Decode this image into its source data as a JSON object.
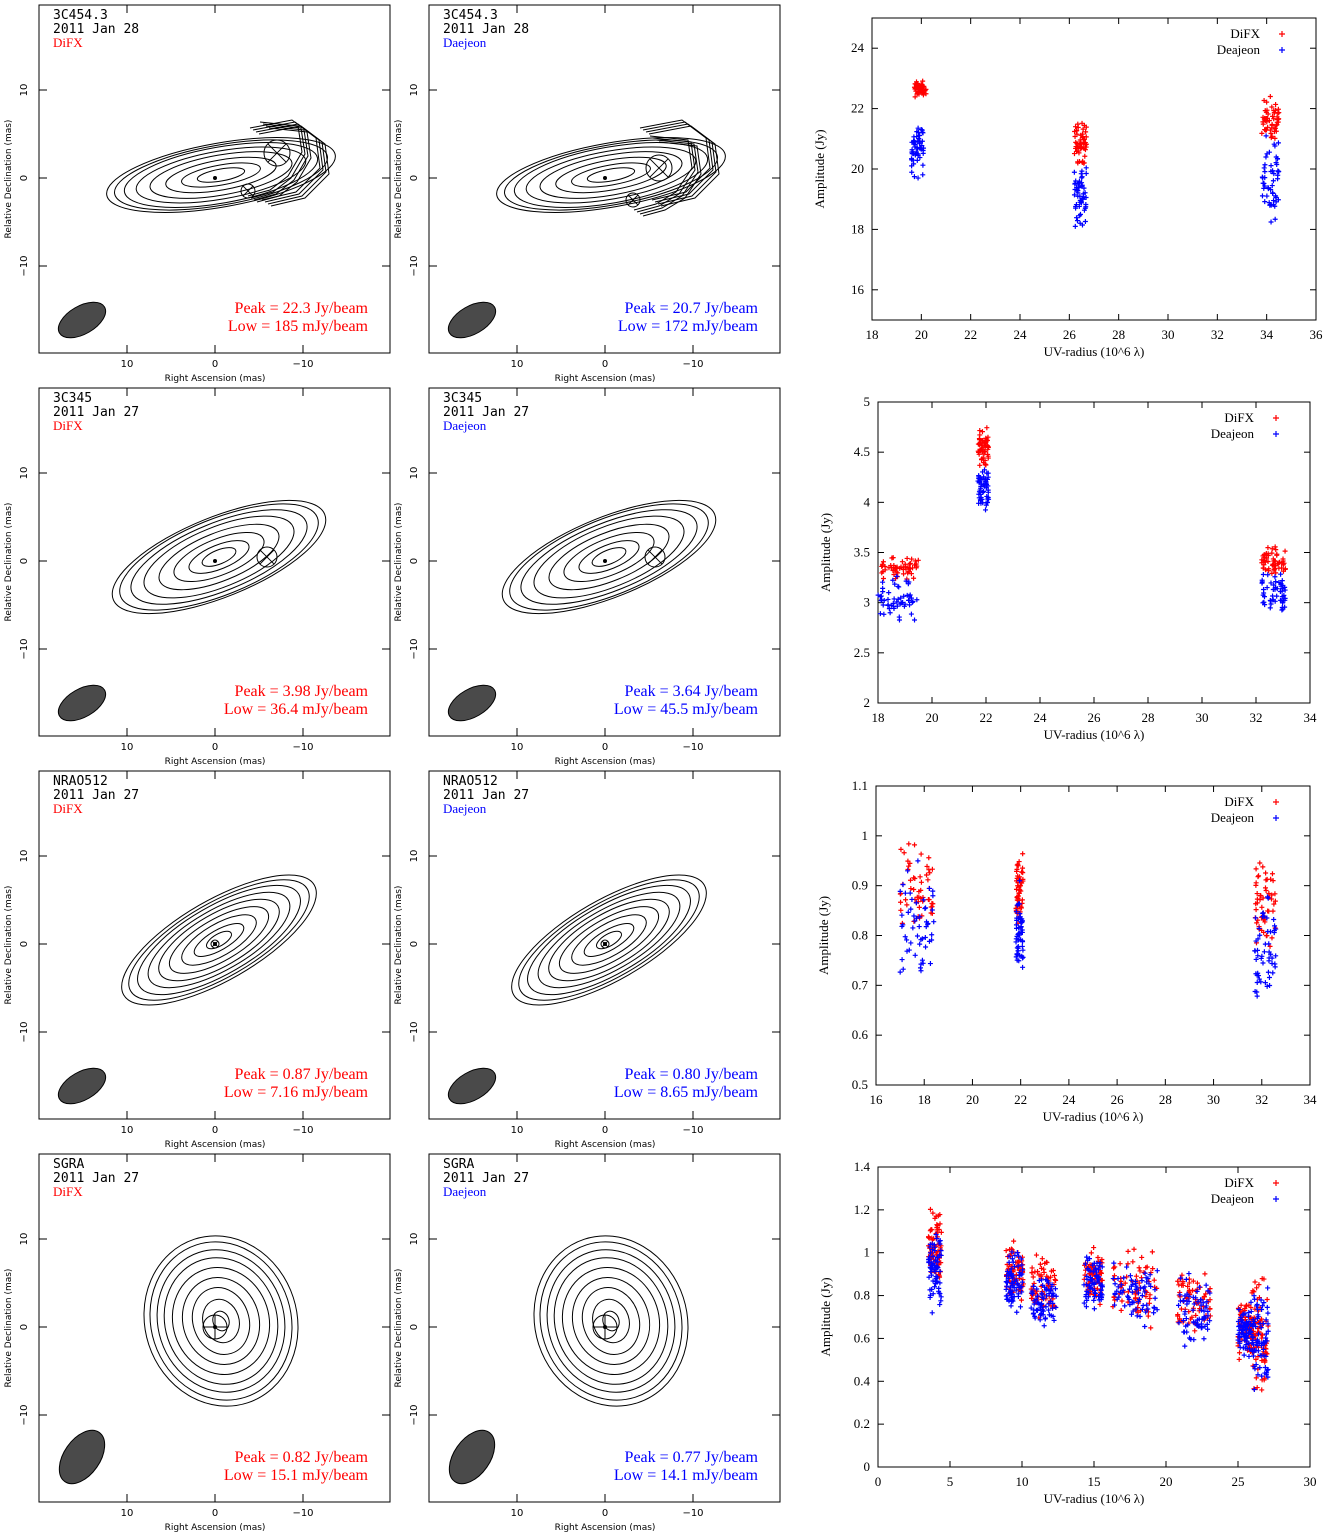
{
  "colors": {
    "difx": "#ff0000",
    "daejeon": "#0000ff",
    "beam": "#4a4a4a",
    "ink": "#000000"
  },
  "map_axis": {
    "xlabel": "Right Ascension   (mas)",
    "ylabel": "Relative Declination   (mas)",
    "xticks": [
      "10",
      "0",
      "−10"
    ],
    "yticks": [
      "10",
      "0",
      "−10"
    ]
  },
  "rows": [
    {
      "source": "3C454.3",
      "date": "2011 Jan 28",
      "left": {
        "label": "DiFX",
        "peak": "Peak = 22.3 Jy/beam",
        "low": "Low = 185 mJy/beam"
      },
      "right": {
        "label": "Daejeon",
        "peak": "Peak = 20.7 Jy/beam",
        "low": "Low = 172 mJy/beam"
      }
    },
    {
      "source": "3C345",
      "date": "2011 Jan 27",
      "left": {
        "label": "DiFX",
        "peak": "Peak = 3.98 Jy/beam",
        "low": "Low = 36.4 mJy/beam"
      },
      "right": {
        "label": "Daejeon",
        "peak": "Peak = 3.64 Jy/beam",
        "low": "Low = 45.5 mJy/beam"
      }
    },
    {
      "source": "NRAO512",
      "date": "2011 Jan 27",
      "left": {
        "label": "DiFX",
        "peak": "Peak = 0.87 Jy/beam",
        "low": "Low = 7.16 mJy/beam"
      },
      "right": {
        "label": "Daejeon",
        "peak": "Peak = 0.80 Jy/beam",
        "low": "Low = 8.65 mJy/beam"
      }
    },
    {
      "source": "SGRA",
      "date": "2011 Jan 27",
      "left": {
        "label": "DiFX",
        "peak": "Peak = 0.82 Jy/beam",
        "low": "Low = 15.1 mJy/beam"
      },
      "right": {
        "label": "Daejeon",
        "peak": "Peak = 0.77 Jy/beam",
        "low": "Low = 14.1 mJy/beam"
      }
    }
  ],
  "chart_data": [
    {
      "type": "scatter",
      "xlabel": "UV-radius (10^6 λ)",
      "ylabel": "Amplitude (Jy)",
      "xlim": [
        18,
        36
      ],
      "ylim": [
        15,
        25
      ],
      "xticks": [
        18,
        20,
        22,
        24,
        26,
        28,
        30,
        32,
        34,
        36
      ],
      "yticks": [
        16,
        18,
        20,
        22,
        24
      ],
      "legend": "top-right",
      "series": [
        {
          "name": "DiFX",
          "clusters": [
            {
              "x": [
                19.7,
                20.2
              ],
              "y": [
                22.3,
                23.0
              ]
            },
            {
              "x": [
                26.2,
                26.7
              ],
              "y": [
                19.9,
                21.8
              ]
            },
            {
              "x": [
                33.8,
                34.5
              ],
              "y": [
                20.6,
                22.6
              ]
            }
          ]
        },
        {
          "name": "Deajeon",
          "clusters": [
            {
              "x": [
                19.6,
                20.1
              ],
              "y": [
                19.5,
                22.0
              ]
            },
            {
              "x": [
                26.2,
                26.7
              ],
              "y": [
                17.5,
                20.6
              ]
            },
            {
              "x": [
                33.8,
                34.5
              ],
              "y": [
                18.0,
                21.5
              ]
            }
          ]
        }
      ]
    },
    {
      "type": "scatter",
      "xlabel": "UV-radius (10^6 λ)",
      "ylabel": "Amplitude (Jy)",
      "xlim": [
        18,
        34
      ],
      "ylim": [
        2,
        5
      ],
      "xticks": [
        18,
        20,
        22,
        24,
        26,
        28,
        30,
        32,
        34
      ],
      "yticks": [
        2,
        2.5,
        3,
        3.5,
        4,
        4.5,
        5
      ],
      "legend": "top-right",
      "series": [
        {
          "name": "DiFX",
          "clusters": [
            {
              "x": [
                18.0,
                19.5
              ],
              "y": [
                3.2,
                3.5
              ]
            },
            {
              "x": [
                21.7,
                22.1
              ],
              "y": [
                4.3,
                4.8
              ]
            },
            {
              "x": [
                32.2,
                33.1
              ],
              "y": [
                3.2,
                3.6
              ]
            }
          ]
        },
        {
          "name": "Deajeon",
          "clusters": [
            {
              "x": [
                18.0,
                19.5
              ],
              "y": [
                2.75,
                3.3
              ]
            },
            {
              "x": [
                21.7,
                22.1
              ],
              "y": [
                3.8,
                4.45
              ]
            },
            {
              "x": [
                32.2,
                33.1
              ],
              "y": [
                2.8,
                3.35
              ]
            }
          ]
        }
      ]
    },
    {
      "type": "scatter",
      "xlabel": "UV-radius (10^6 λ)",
      "ylabel": "Amplitude (Jy)",
      "xlim": [
        16,
        34
      ],
      "ylim": [
        0.5,
        1.1
      ],
      "xticks": [
        16,
        18,
        20,
        22,
        24,
        26,
        28,
        30,
        32,
        34
      ],
      "yticks": [
        0.5,
        0.6,
        0.7,
        0.8,
        0.9,
        1,
        1.1
      ],
      "legend": "top-right",
      "series": [
        {
          "name": "DiFX",
          "clusters": [
            {
              "x": [
                17.0,
                18.4
              ],
              "y": [
                0.75,
                1.03
              ]
            },
            {
              "x": [
                21.8,
                22.1
              ],
              "y": [
                0.78,
                1.0
              ]
            },
            {
              "x": [
                31.7,
                32.6
              ],
              "y": [
                0.74,
                0.98
              ]
            }
          ]
        },
        {
          "name": "Deajeon",
          "clusters": [
            {
              "x": [
                17.0,
                18.4
              ],
              "y": [
                0.66,
                0.97
              ]
            },
            {
              "x": [
                21.8,
                22.1
              ],
              "y": [
                0.67,
                0.93
              ]
            },
            {
              "x": [
                31.7,
                32.6
              ],
              "y": [
                0.64,
                0.91
              ]
            }
          ]
        }
      ]
    },
    {
      "type": "scatter",
      "xlabel": "UV-radius (10^6 λ)",
      "ylabel": "Amplitude (Jy)",
      "xlim": [
        0,
        30
      ],
      "ylim": [
        0,
        1.4
      ],
      "xticks": [
        0,
        5,
        10,
        15,
        20,
        25,
        30
      ],
      "yticks": [
        0,
        0.2,
        0.4,
        0.6,
        0.8,
        1,
        1.2,
        1.4
      ],
      "legend": "top-right",
      "series": [
        {
          "name": "DiFX",
          "clusters": [
            {
              "x": [
                3.5,
                4.4
              ],
              "y": [
                0.8,
                1.27
              ]
            },
            {
              "x": [
                8.9,
                10.1
              ],
              "y": [
                0.72,
                1.13
              ]
            },
            {
              "x": [
                10.6,
                12.4
              ],
              "y": [
                0.62,
                1.05
              ]
            },
            {
              "x": [
                14.3,
                15.6
              ],
              "y": [
                0.72,
                1.07
              ]
            },
            {
              "x": [
                16.3,
                19.4
              ],
              "y": [
                0.62,
                1.06
              ]
            },
            {
              "x": [
                20.8,
                23.1
              ],
              "y": [
                0.55,
                1.01
              ]
            },
            {
              "x": [
                25.0,
                26.0
              ],
              "y": [
                0.45,
                0.85
              ]
            },
            {
              "x": [
                26.0,
                27.1
              ],
              "y": [
                0.27,
                0.95
              ]
            }
          ]
        },
        {
          "name": "Deajeon",
          "clusters": [
            {
              "x": [
                3.5,
                4.4
              ],
              "y": [
                0.64,
                1.2
              ]
            },
            {
              "x": [
                8.9,
                10.1
              ],
              "y": [
                0.7,
                1.05
              ]
            },
            {
              "x": [
                10.6,
                12.4
              ],
              "y": [
                0.6,
                0.97
              ]
            },
            {
              "x": [
                14.3,
                15.6
              ],
              "y": [
                0.7,
                1.03
              ]
            },
            {
              "x": [
                16.3,
                19.4
              ],
              "y": [
                0.6,
                0.99
              ]
            },
            {
              "x": [
                20.8,
                23.1
              ],
              "y": [
                0.52,
                0.93
              ]
            },
            {
              "x": [
                25.0,
                26.0
              ],
              "y": [
                0.45,
                0.8
              ]
            },
            {
              "x": [
                26.0,
                27.1
              ],
              "y": [
                0.3,
                0.9
              ]
            }
          ]
        }
      ]
    }
  ]
}
